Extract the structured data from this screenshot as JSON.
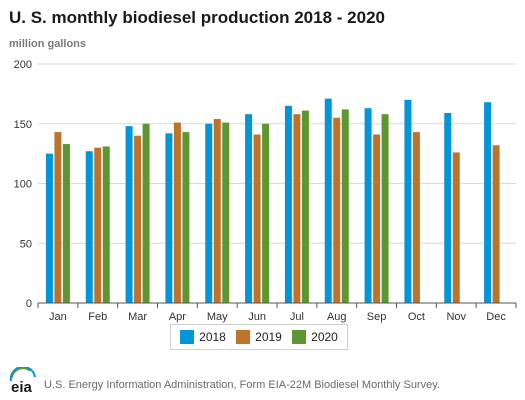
{
  "title": "U. S. monthly biodiesel production 2018 - 2020",
  "unit_label": "million gallons",
  "source": "U.S. Energy Information Administration, Form EIA-22M Biodiesel Monthly Survey.",
  "logo_text": "eia",
  "chart_data": {
    "type": "bar",
    "categories": [
      "Jan",
      "Feb",
      "Mar",
      "Apr",
      "May",
      "Jun",
      "Jul",
      "Aug",
      "Sep",
      "Oct",
      "Nov",
      "Dec"
    ],
    "series": [
      {
        "name": "2018",
        "color": "#0096d7",
        "values": [
          125,
          127,
          148,
          142,
          150,
          158,
          165,
          171,
          163,
          170,
          159,
          168
        ]
      },
      {
        "name": "2019",
        "color": "#bd732a",
        "values": [
          143,
          130,
          140,
          151,
          154,
          141,
          158,
          155,
          141,
          143,
          126,
          132
        ]
      },
      {
        "name": "2020",
        "color": "#5d9732",
        "values": [
          133,
          131,
          150,
          143,
          151,
          150,
          161,
          162,
          158,
          null,
          null,
          null
        ]
      }
    ],
    "ylim": [
      0,
      200
    ],
    "yticks": [
      0,
      50,
      100,
      150,
      200
    ],
    "grid": true,
    "legend_position": "bottom"
  }
}
